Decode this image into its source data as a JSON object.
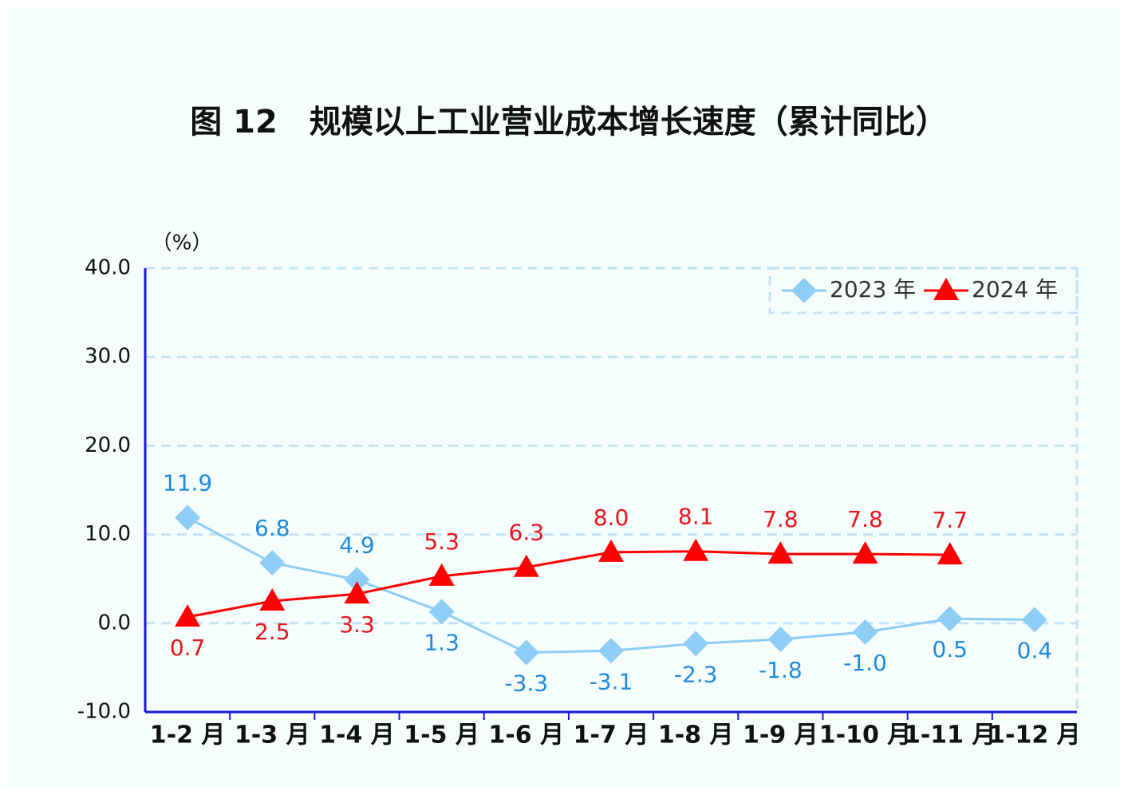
{
  "chart_data": {
    "type": "line",
    "title": "图 12　规模以上工业营业成本增长速度（累计同比）",
    "y_label": "（%）",
    "categories": [
      "1-2 月",
      "1-3 月",
      "1-4 月",
      "1-5 月",
      "1-6 月",
      "1-7 月",
      "1-8 月",
      "1-9 月",
      "1-10 月",
      "1-11 月",
      "1-12 月"
    ],
    "series": [
      {
        "name": "2023 年",
        "color": "#8ecdf6",
        "label_color": "#1f8ae0",
        "marker": "diamond",
        "values": [
          11.9,
          6.8,
          4.9,
          1.3,
          -3.3,
          -3.1,
          -2.3,
          -1.8,
          -1.0,
          0.5,
          0.4
        ],
        "value_labels": [
          "11.9",
          "6.8",
          "4.9",
          "1.3",
          "-3.3",
          "-3.1",
          "-2.3",
          "-1.8",
          "-1.0",
          "0.5",
          "0.4"
        ]
      },
      {
        "name": "2024 年",
        "color": "#ff0000",
        "label_color": "#e8141a",
        "marker": "triangle",
        "values": [
          0.7,
          2.5,
          3.3,
          5.3,
          6.3,
          8.0,
          8.1,
          7.8,
          7.8,
          7.7,
          null
        ],
        "value_labels": [
          "0.7",
          "2.5",
          "3.3",
          "5.3",
          "6.3",
          "8.0",
          "8.1",
          "7.8",
          "7.8",
          "7.7",
          null
        ]
      }
    ],
    "ylim": [
      -10,
      40
    ],
    "yticks": [
      {
        "value": -10,
        "label": "-10.0"
      },
      {
        "value": 0,
        "label": "0.0"
      },
      {
        "value": 10,
        "label": "10.0"
      },
      {
        "value": 20,
        "label": "20.0"
      },
      {
        "value": 30,
        "label": "30.0"
      },
      {
        "value": 40,
        "label": "40.0"
      }
    ],
    "grid": true,
    "legend": "top-right"
  }
}
